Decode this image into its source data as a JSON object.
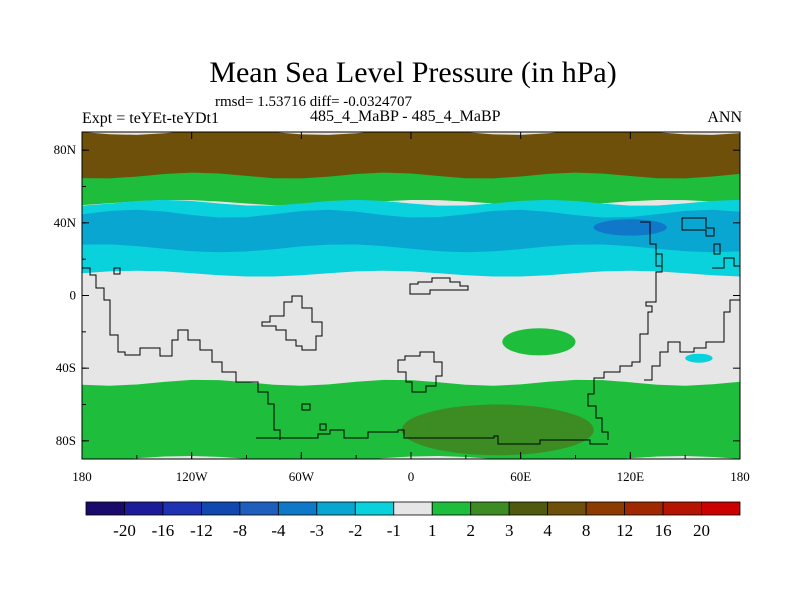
{
  "chart_data": {
    "type": "heatmap",
    "title": "Mean Sea Level Pressure (in hPa)",
    "stats": "rmsd= 1.53716 diff= -0.0324707",
    "left_label": "Expt = teYEt-teYDt1",
    "center_label": "485_4_MaBP - 485_4_MaBP",
    "right_label": "ANN",
    "xlim": [
      -180,
      180
    ],
    "ylim": [
      -90,
      90
    ],
    "x_ticks": [
      {
        "value": -180,
        "label": "180"
      },
      {
        "value": -120,
        "label": "120W"
      },
      {
        "value": -60,
        "label": "60W"
      },
      {
        "value": 0,
        "label": "0"
      },
      {
        "value": 60,
        "label": "60E"
      },
      {
        "value": 120,
        "label": "120E"
      },
      {
        "value": 180,
        "label": "180"
      }
    ],
    "y_ticks": [
      {
        "value": 80,
        "label": "80N"
      },
      {
        "value": 40,
        "label": "40N"
      },
      {
        "value": 0,
        "label": "0"
      },
      {
        "value": -40,
        "label": "40S"
      },
      {
        "value": -80,
        "label": "80S"
      }
    ],
    "colorbar": {
      "levels": [
        "-20",
        "-16",
        "-12",
        "-8",
        "-4",
        "-3",
        "-2",
        "-1",
        "1",
        "2",
        "3",
        "4",
        "8",
        "12",
        "16",
        "20"
      ],
      "colors": [
        "#1a0a6b",
        "#1c1c9a",
        "#1e32b4",
        "#1048b0",
        "#1e5fbe",
        "#1078c8",
        "#0aa6d2",
        "#0ad2dc",
        "#e6e6e6",
        "#1ebe3c",
        "#3c8c23",
        "#505a0f",
        "#6e500a",
        "#8c3c00",
        "#a02800",
        "#b41400",
        "#cc0000"
      ]
    },
    "regions": [
      {
        "name": "arctic-high-band",
        "level_index": 12,
        "lat_range": [
          62,
          90
        ],
        "lon_range": [
          -180,
          180
        ]
      },
      {
        "name": "northern-green-band",
        "level_index": 9,
        "lat_range": [
          51,
          66
        ],
        "lon_range": [
          -180,
          180
        ]
      },
      {
        "name": "midlat-low-band",
        "level_index": 7,
        "lat_range": [
          12,
          51
        ],
        "lon_range": [
          -180,
          180
        ]
      },
      {
        "name": "midlat-core-low",
        "level_index": 6,
        "lat_range": [
          26,
          45
        ],
        "lon_range": [
          -180,
          180
        ]
      },
      {
        "name": "pacific-deep-low",
        "level_index": 5,
        "lat_range": [
          33,
          42
        ],
        "lon_range": [
          100,
          140
        ]
      },
      {
        "name": "indian-ocean-high",
        "level_index": 9,
        "lat_range": [
          -33,
          -18
        ],
        "lon_range": [
          50,
          90
        ]
      },
      {
        "name": "south-pacific-low",
        "level_index": 7,
        "lat_range": [
          -37,
          -32
        ],
        "lon_range": [
          150,
          165
        ]
      },
      {
        "name": "southern-green-band",
        "level_index": 9,
        "lat_range": [
          -90,
          -48
        ],
        "lon_range": [
          -180,
          180
        ]
      },
      {
        "name": "antarctic-olive-core",
        "level_index": 10,
        "lat_range": [
          -88,
          -60
        ],
        "lon_range": [
          -5,
          100
        ]
      }
    ]
  }
}
